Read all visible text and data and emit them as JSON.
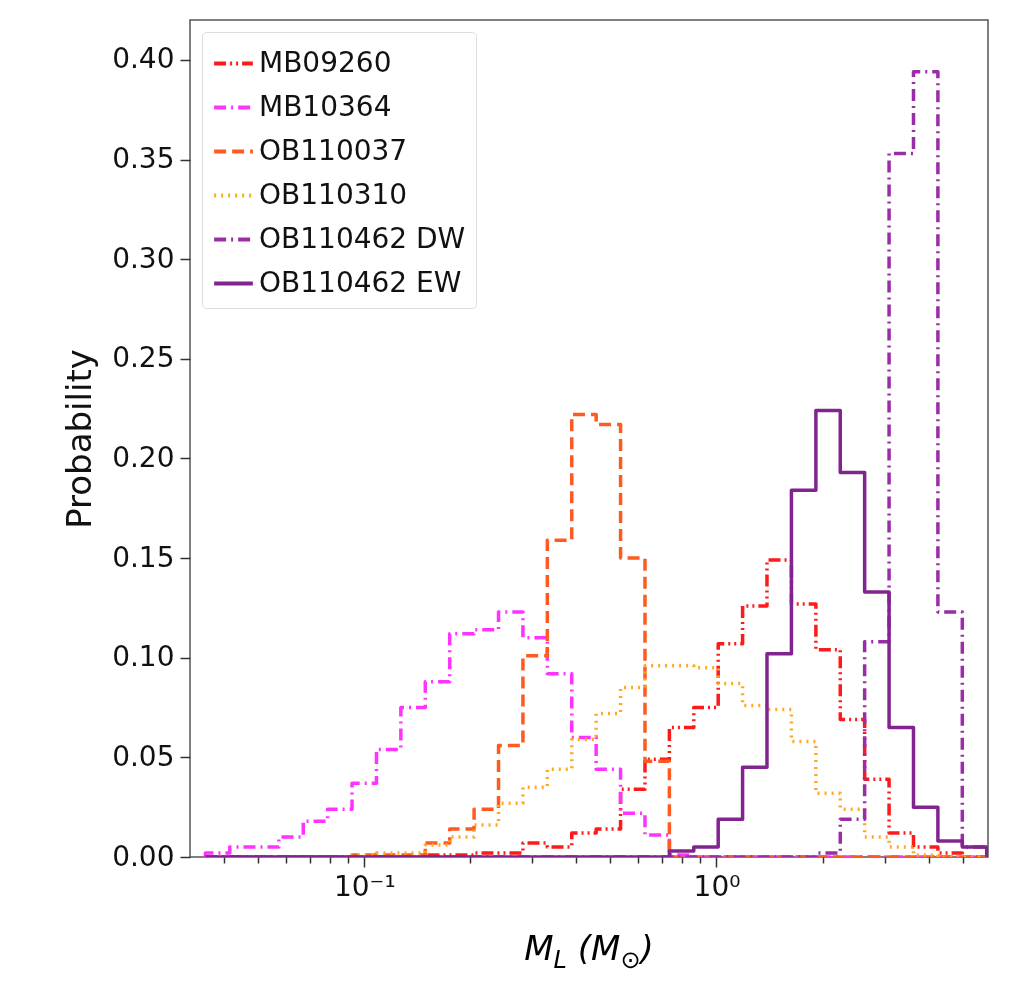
{
  "chart_data": {
    "type": "histogram",
    "xlabel": "M$_{L}$ (M$_{⊙}$)",
    "ylabel": "Probability",
    "log": "x",
    "legend": "top left",
    "xlim": [
      0.032,
      5.9
    ],
    "ylim": [
      0,
      0.42
    ],
    "xticks": [
      {
        "value": 0.04,
        "label": null
      },
      {
        "value": 0.05,
        "label": null
      },
      {
        "value": 0.06,
        "label": null
      },
      {
        "value": 0.07,
        "label": null
      },
      {
        "value": 0.08,
        "label": null
      },
      {
        "value": 0.09,
        "label": null
      },
      {
        "value": 0.1,
        "label": "10⁻¹"
      },
      {
        "value": 0.2,
        "label": null
      },
      {
        "value": 0.3,
        "label": null
      },
      {
        "value": 0.4,
        "label": null
      },
      {
        "value": 0.5,
        "label": null
      },
      {
        "value": 0.6,
        "label": null
      },
      {
        "value": 0.7,
        "label": null
      },
      {
        "value": 0.8,
        "label": null
      },
      {
        "value": 0.9,
        "label": null
      },
      {
        "value": 1,
        "label": "10⁰"
      },
      {
        "value": 2,
        "label": null
      },
      {
        "value": 3,
        "label": null
      },
      {
        "value": 4,
        "label": null
      },
      {
        "value": 5,
        "label": null
      }
    ],
    "yticks": [
      {
        "value": 0,
        "label": "0.00"
      },
      {
        "value": 0.05,
        "label": "0.05"
      },
      {
        "value": 0.1,
        "label": "0.10"
      },
      {
        "value": 0.15,
        "label": "0.15"
      },
      {
        "value": 0.2,
        "label": "0.20"
      },
      {
        "value": 0.25,
        "label": "0.25"
      },
      {
        "value": 0.3,
        "label": "0.30"
      },
      {
        "value": 0.35,
        "label": "0.35"
      },
      {
        "value": 0.4,
        "label": "0.40"
      }
    ],
    "bins": [
      0.0354,
      0.0415,
      0.0487,
      0.0572,
      0.0671,
      0.0787,
      0.0923,
      0.1083,
      0.127,
      0.149,
      0.1748,
      0.205,
      0.2405,
      0.2821,
      0.3309,
      0.3882,
      0.4553,
      0.5341,
      0.6265,
      0.7349,
      0.862,
      1.0112,
      1.186,
      1.391,
      1.632,
      1.915,
      2.246,
      2.634,
      3.09,
      3.625,
      4.252,
      4.988,
      5.851
    ],
    "series": [
      {
        "name": "MB09260",
        "color": "#ff1a1a",
        "line_style": "dashdotdot",
        "values": [
          0,
          0,
          0,
          0,
          0,
          0,
          0,
          0,
          0,
          0.001,
          0.001,
          0.002,
          0.002,
          0.007,
          0.005,
          0.012,
          0.014,
          0.034,
          0.049,
          0.065,
          0.075,
          0.107,
          0.126,
          0.149,
          0.127,
          0.104,
          0.069,
          0.039,
          0.012,
          0.005,
          0.002,
          0
        ]
      },
      {
        "name": "MB10364",
        "color": "#ff33ff",
        "line_style": "dashdot",
        "values": [
          0.002,
          0.005,
          0.005,
          0.01,
          0.018,
          0.024,
          0.037,
          0.054,
          0.075,
          0.088,
          0.112,
          0.114,
          0.123,
          0.11,
          0.092,
          0.06,
          0.044,
          0.022,
          0.011,
          0.001,
          0,
          0,
          0,
          0,
          0,
          0,
          0,
          0,
          0,
          0,
          0,
          0
        ]
      },
      {
        "name": "OB110037",
        "color": "#ff5a1f",
        "line_style": "dashed",
        "values": [
          0,
          0,
          0,
          0,
          0,
          0,
          0.001,
          0.001,
          0.001,
          0.007,
          0.014,
          0.024,
          0.056,
          0.101,
          0.159,
          0.222,
          0.217,
          0.15,
          0.048,
          0,
          0,
          0,
          0,
          0,
          0,
          0,
          0,
          0,
          0,
          0,
          0,
          0
        ]
      },
      {
        "name": "OB110310",
        "color": "#ffa726",
        "line_style": "dotted",
        "values": [
          0,
          0,
          0,
          0,
          0,
          0,
          0.001,
          0.002,
          0.002,
          0.006,
          0.01,
          0.016,
          0.027,
          0.035,
          0.044,
          0.059,
          0.072,
          0.085,
          0.096,
          0.096,
          0.095,
          0.087,
          0.076,
          0.074,
          0.058,
          0.032,
          0.024,
          0.01,
          0.005,
          0.001,
          0,
          0
        ]
      },
      {
        "name": "OB110462 DW",
        "color": "#9b2ca8",
        "line_style": "dashdot",
        "values": [
          0,
          0,
          0,
          0,
          0,
          0,
          0,
          0,
          0,
          0,
          0,
          0,
          0,
          0,
          0,
          0,
          0,
          0,
          0,
          0,
          0,
          0,
          0,
          0,
          0,
          0.002,
          0.019,
          0.108,
          0.353,
          0.394,
          0.123,
          0.005
        ]
      },
      {
        "name": "OB110462 EW",
        "color": "#82248f",
        "line_style": "solid",
        "values": [
          0,
          0,
          0,
          0,
          0,
          0,
          0,
          0,
          0,
          0,
          0,
          0,
          0,
          0,
          0,
          0,
          0,
          0,
          0,
          0.003,
          0.005,
          0.019,
          0.045,
          0.102,
          0.184,
          0.224,
          0.193,
          0.133,
          0.065,
          0.025,
          0.008,
          0.005
        ]
      }
    ]
  }
}
